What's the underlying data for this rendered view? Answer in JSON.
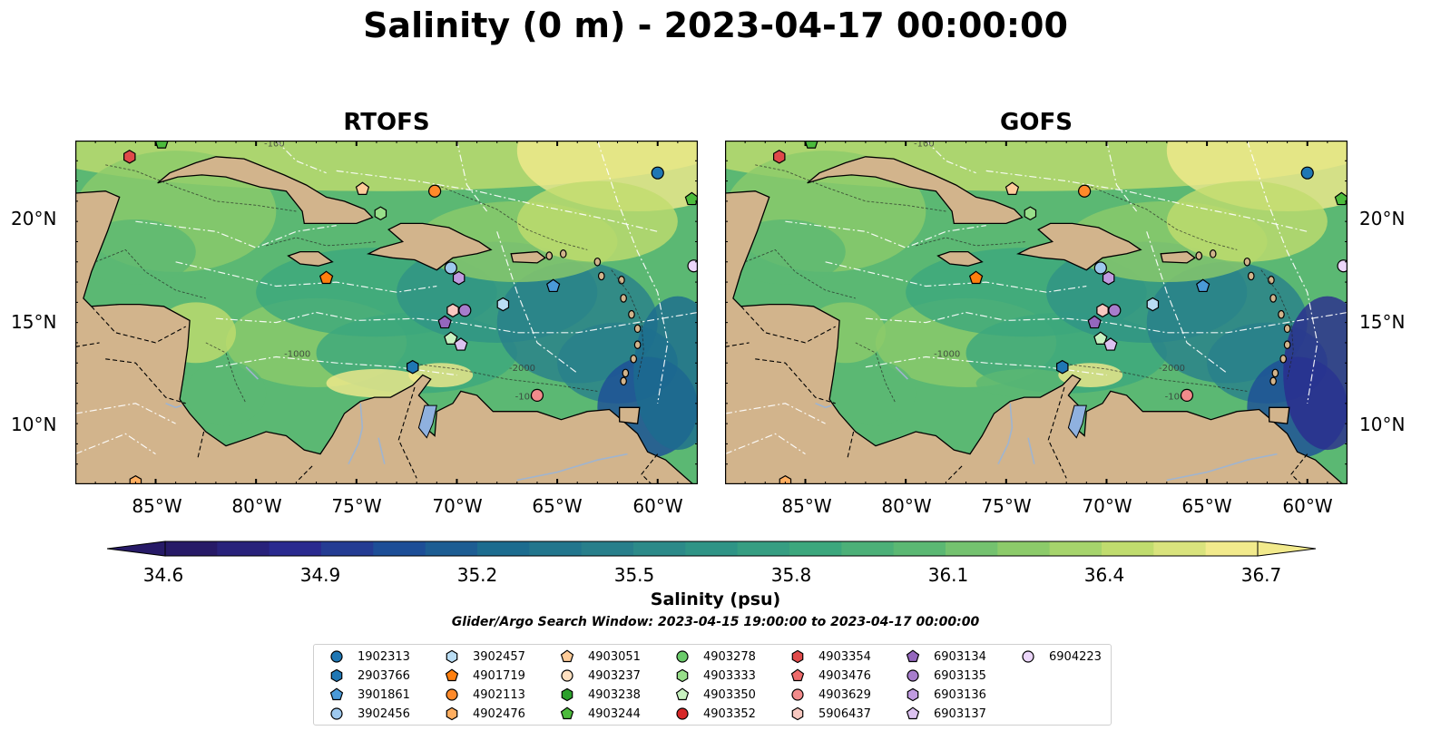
{
  "title": "Salinity (0 m) - 2023-04-17 00:00:00",
  "panels": [
    {
      "title": "RTOFS"
    },
    {
      "title": "GOFS"
    }
  ],
  "map": {
    "lon_range": [
      -89,
      -58
    ],
    "lat_range": [
      7,
      24
    ],
    "lat_ticks": [
      "20°N",
      "15°N",
      "10°N"
    ],
    "lon_ticks": [
      "85°W",
      "80°W",
      "75°W",
      "70°W",
      "65°W",
      "60°W"
    ],
    "land_color": "#d2b48c",
    "contour_labels": [
      "-100",
      "-1000",
      "-2000",
      "-100"
    ]
  },
  "colorbar": {
    "label": "Salinity (psu)",
    "ticks": [
      "34.6",
      "34.9",
      "35.2",
      "35.5",
      "35.8",
      "36.1",
      "36.4",
      "36.7"
    ],
    "range": [
      34.6,
      36.7
    ],
    "colormap": [
      "#271a67",
      "#2a2a8f",
      "#1d4e97",
      "#1c6c8f",
      "#287f8b",
      "#2f9486",
      "#3ca77d",
      "#5bb873",
      "#8ccb6a",
      "#c0dc6e",
      "#f2ea8c"
    ]
  },
  "search_window": "Glider/Argo Search Window: 2023-04-15 19:00:00 to 2023-04-17 00:00:00",
  "legend": [
    {
      "id": "1902313",
      "shape": "circle",
      "color": "#1f77b4"
    },
    {
      "id": "2903766",
      "shape": "hexagon",
      "color": "#1f77b4"
    },
    {
      "id": "3901861",
      "shape": "pentagon",
      "color": "#4a9ad8"
    },
    {
      "id": "3902456",
      "shape": "circle",
      "color": "#9ec9ee"
    },
    {
      "id": "3902457",
      "shape": "hexagon",
      "color": "#b9ddf4"
    },
    {
      "id": "4901719",
      "shape": "pentagon",
      "color": "#ff7f0e"
    },
    {
      "id": "4902113",
      "shape": "circle",
      "color": "#ff8a2a"
    },
    {
      "id": "4902476",
      "shape": "hexagon",
      "color": "#ffae60"
    },
    {
      "id": "4903051",
      "shape": "pentagon",
      "color": "#ffcc99"
    },
    {
      "id": "4903237",
      "shape": "circle",
      "color": "#ffe0c0"
    },
    {
      "id": "4903238",
      "shape": "hexagon",
      "color": "#2ca02c"
    },
    {
      "id": "4903244",
      "shape": "pentagon",
      "color": "#4cbb3c"
    },
    {
      "id": "4903278",
      "shape": "circle",
      "color": "#6acb6a"
    },
    {
      "id": "4903333",
      "shape": "hexagon",
      "color": "#98df8a"
    },
    {
      "id": "4903350",
      "shape": "pentagon",
      "color": "#c8f2c0"
    },
    {
      "id": "4903352",
      "shape": "circle",
      "color": "#d62728"
    },
    {
      "id": "4903354",
      "shape": "hexagon",
      "color": "#e04a4a"
    },
    {
      "id": "4903476",
      "shape": "pentagon",
      "color": "#ee6b6b"
    },
    {
      "id": "4903629",
      "shape": "circle",
      "color": "#f28b8b"
    },
    {
      "id": "5906437",
      "shape": "hexagon",
      "color": "#f8c8c0"
    },
    {
      "id": "6903134",
      "shape": "pentagon",
      "color": "#9467bd"
    },
    {
      "id": "6903135",
      "shape": "circle",
      "color": "#a77dcc"
    },
    {
      "id": "6903136",
      "shape": "hexagon",
      "color": "#c09be0"
    },
    {
      "id": "6903137",
      "shape": "pentagon",
      "color": "#dcc2f0"
    },
    {
      "id": "6904223",
      "shape": "circle",
      "color": "#ecd6fa"
    }
  ],
  "floats": [
    {
      "id": "4903354",
      "lon": -86.3,
      "lat": 23.2
    },
    {
      "id": "4903244",
      "lon": -84.7,
      "lat": 23.9
    },
    {
      "id": "4903051",
      "lon": -74.7,
      "lat": 21.6
    },
    {
      "id": "4902113",
      "lon": -71.1,
      "lat": 21.5
    },
    {
      "id": "4903333",
      "lon": -73.8,
      "lat": 20.4
    },
    {
      "id": "1902313",
      "lon": -60.0,
      "lat": 22.4
    },
    {
      "id": "4903244",
      "lon": -58.3,
      "lat": 21.1
    },
    {
      "id": "4901719",
      "lon": -76.5,
      "lat": 17.2
    },
    {
      "id": "3902456",
      "lon": -70.3,
      "lat": 17.7
    },
    {
      "id": "6903136",
      "lon": -69.9,
      "lat": 17.2
    },
    {
      "id": "3901861",
      "lon": -65.2,
      "lat": 16.8
    },
    {
      "id": "3902457",
      "lon": -67.7,
      "lat": 15.9
    },
    {
      "id": "6904223",
      "lon": -58.2,
      "lat": 17.8
    },
    {
      "id": "5906437",
      "lon": -70.2,
      "lat": 15.6
    },
    {
      "id": "6903135",
      "lon": -69.6,
      "lat": 15.6
    },
    {
      "id": "6903134",
      "lon": -70.6,
      "lat": 15.0
    },
    {
      "id": "4903350",
      "lon": -70.3,
      "lat": 14.2
    },
    {
      "id": "6903137",
      "lon": -69.8,
      "lat": 13.9
    },
    {
      "id": "2903766",
      "lon": -72.2,
      "lat": 12.8
    },
    {
      "id": "4903629",
      "lon": -66.0,
      "lat": 11.4
    },
    {
      "id": "4902476",
      "lon": -86.0,
      "lat": 7.1
    }
  ]
}
